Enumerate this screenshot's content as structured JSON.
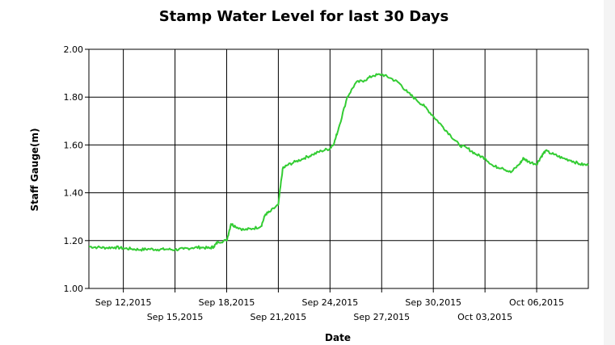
{
  "chart_data": {
    "type": "line",
    "title": "Stamp Water Level for last 30 Days",
    "xlabel": "Date",
    "ylabel": "Staff Gauge(m)",
    "ylim": [
      1.0,
      2.0
    ],
    "yticks": [
      "1.00",
      "1.20",
      "1.40",
      "1.60",
      "1.80",
      "2.00"
    ],
    "xlim": [
      "2015-09-10",
      "2015-10-09"
    ],
    "xticks": [
      {
        "label": "Sep 12,2015",
        "date": "2015-09-12",
        "row": 1
      },
      {
        "label": "Sep 15,2015",
        "date": "2015-09-15",
        "row": 2
      },
      {
        "label": "Sep 18,2015",
        "date": "2015-09-18",
        "row": 1
      },
      {
        "label": "Sep 21,2015",
        "date": "2015-09-21",
        "row": 2
      },
      {
        "label": "Sep 24,2015",
        "date": "2015-09-24",
        "row": 1
      },
      {
        "label": "Sep 27,2015",
        "date": "2015-09-27",
        "row": 2
      },
      {
        "label": "Sep 30,2015",
        "date": "2015-09-30",
        "row": 1
      },
      {
        "label": "Oct 03,2015",
        "date": "2015-10-03",
        "row": 2
      },
      {
        "label": "Oct 06,2015",
        "date": "2015-10-06",
        "row": 1
      }
    ],
    "grid": true,
    "legend": "none",
    "series": [
      {
        "color": "#33cc33",
        "points": [
          [
            "2015-09-10",
            1.175
          ],
          [
            "2015-09-10 12:00",
            1.172
          ],
          [
            "2015-09-11",
            1.17
          ],
          [
            "2015-09-11 12:00",
            1.172
          ],
          [
            "2015-09-12",
            1.168
          ],
          [
            "2015-09-12 12:00",
            1.165
          ],
          [
            "2015-09-13",
            1.162
          ],
          [
            "2015-09-13 12:00",
            1.165
          ],
          [
            "2015-09-14",
            1.163
          ],
          [
            "2015-09-14 12:00",
            1.164
          ],
          [
            "2015-09-15",
            1.162
          ],
          [
            "2015-09-15 12:00",
            1.165
          ],
          [
            "2015-09-16",
            1.17
          ],
          [
            "2015-09-16 12:00",
            1.172
          ],
          [
            "2015-09-17",
            1.168
          ],
          [
            "2015-09-17 06:00",
            1.175
          ],
          [
            "2015-09-17 12:00",
            1.195
          ],
          [
            "2015-09-18",
            1.2
          ],
          [
            "2015-09-18 06:00",
            1.27
          ],
          [
            "2015-09-18 12:00",
            1.26
          ],
          [
            "2015-09-19",
            1.245
          ],
          [
            "2015-09-19 12:00",
            1.25
          ],
          [
            "2015-09-20",
            1.26
          ],
          [
            "2015-09-20 06:00",
            1.31
          ],
          [
            "2015-09-20 12:00",
            1.32
          ],
          [
            "2015-09-21",
            1.35
          ],
          [
            "2015-09-21 06:00",
            1.5
          ],
          [
            "2015-09-21 12:00",
            1.515
          ],
          [
            "2015-09-22",
            1.53
          ],
          [
            "2015-09-22 12:00",
            1.545
          ],
          [
            "2015-09-23",
            1.56
          ],
          [
            "2015-09-23 12:00",
            1.575
          ],
          [
            "2015-09-24",
            1.585
          ],
          [
            "2015-09-24 06:00",
            1.61
          ],
          [
            "2015-09-24 12:00",
            1.67
          ],
          [
            "2015-09-25",
            1.8
          ],
          [
            "2015-09-25 12:00",
            1.86
          ],
          [
            "2015-09-26",
            1.87
          ],
          [
            "2015-09-26 12:00",
            1.89
          ],
          [
            "2015-09-27",
            1.895
          ],
          [
            "2015-09-27 12:00",
            1.88
          ],
          [
            "2015-09-28",
            1.86
          ],
          [
            "2015-09-28 12:00",
            1.82
          ],
          [
            "2015-09-29",
            1.79
          ],
          [
            "2015-09-29 12:00",
            1.76
          ],
          [
            "2015-09-30",
            1.72
          ],
          [
            "2015-09-30 12:00",
            1.68
          ],
          [
            "2015-10-01",
            1.64
          ],
          [
            "2015-10-01 12:00",
            1.6
          ],
          [
            "2015-10-02",
            1.585
          ],
          [
            "2015-10-02 12:00",
            1.56
          ],
          [
            "2015-10-03",
            1.545
          ],
          [
            "2015-10-03 12:00",
            1.51
          ],
          [
            "2015-10-04",
            1.505
          ],
          [
            "2015-10-04 12:00",
            1.485
          ],
          [
            "2015-10-05",
            1.52
          ],
          [
            "2015-10-05 06:00",
            1.545
          ],
          [
            "2015-10-05 12:00",
            1.53
          ],
          [
            "2015-10-06",
            1.52
          ],
          [
            "2015-10-06 06:00",
            1.55
          ],
          [
            "2015-10-06 12:00",
            1.575
          ],
          [
            "2015-10-07",
            1.56
          ],
          [
            "2015-10-07 12:00",
            1.545
          ],
          [
            "2015-10-08",
            1.535
          ],
          [
            "2015-10-08 12:00",
            1.52
          ],
          [
            "2015-10-09",
            1.515
          ]
        ]
      }
    ]
  }
}
